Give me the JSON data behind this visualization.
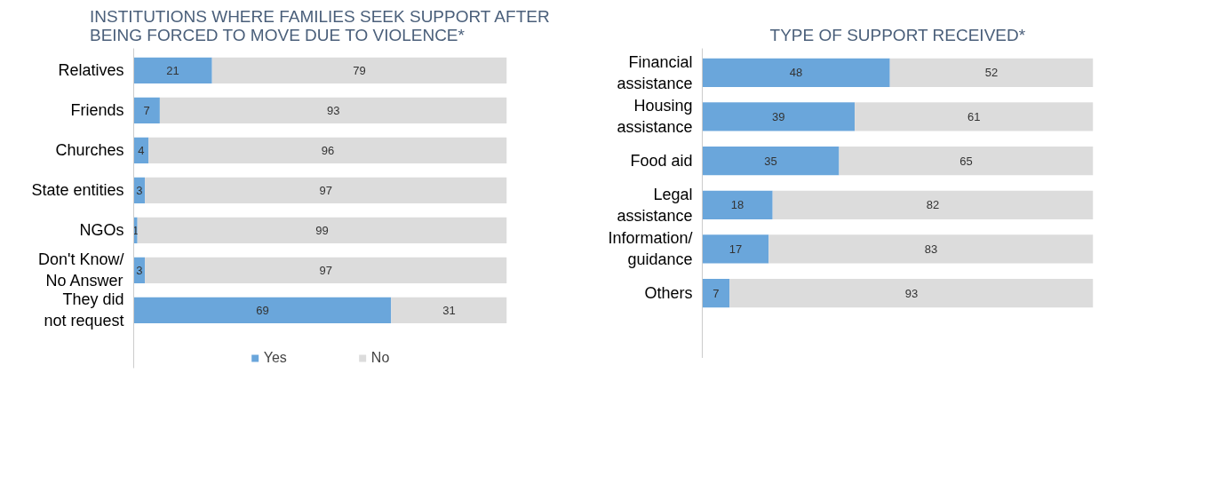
{
  "chart_data": [
    {
      "type": "bar",
      "orientation": "horizontal",
      "stacked": true,
      "title": "INSTITUTIONS WHERE FAMILIES SEEK SUPPORT AFTER\nBEING FORCED TO MOVE DUE TO VIOLENCE*",
      "categories": [
        "Relatives",
        "Friends",
        "Churches",
        "State entities",
        "NGOs",
        "Don't Know/\nNo Answer",
        "They did\nnot request"
      ],
      "series": [
        {
          "name": "Yes",
          "color": "#6aa6db",
          "values": [
            21,
            7,
            4,
            3,
            1,
            3,
            69
          ]
        },
        {
          "name": "No",
          "color": "#dcdcdc",
          "values": [
            79,
            93,
            96,
            97,
            99,
            97,
            31
          ]
        }
      ],
      "xlim": [
        0,
        100
      ],
      "tick_labels": "y",
      "grid": false,
      "legend": "bottom",
      "data_labels": true
    },
    {
      "type": "bar",
      "orientation": "horizontal",
      "stacked": true,
      "title": "TYPE OF SUPPORT RECEIVED*",
      "categories": [
        "Financial\nassistance",
        "Housing\nassistance",
        "Food aid",
        "Legal\nassistance",
        "Information/\nguidance",
        "Others"
      ],
      "series": [
        {
          "color": "#6aa6db",
          "values": [
            48,
            39,
            35,
            18,
            17,
            7
          ]
        },
        {
          "color": "#dcdcdc",
          "values": [
            52,
            61,
            65,
            82,
            83,
            93
          ]
        }
      ],
      "xlim": [
        0,
        100
      ],
      "tick_labels": "y",
      "grid": false,
      "legend": false,
      "data_labels": true
    }
  ]
}
